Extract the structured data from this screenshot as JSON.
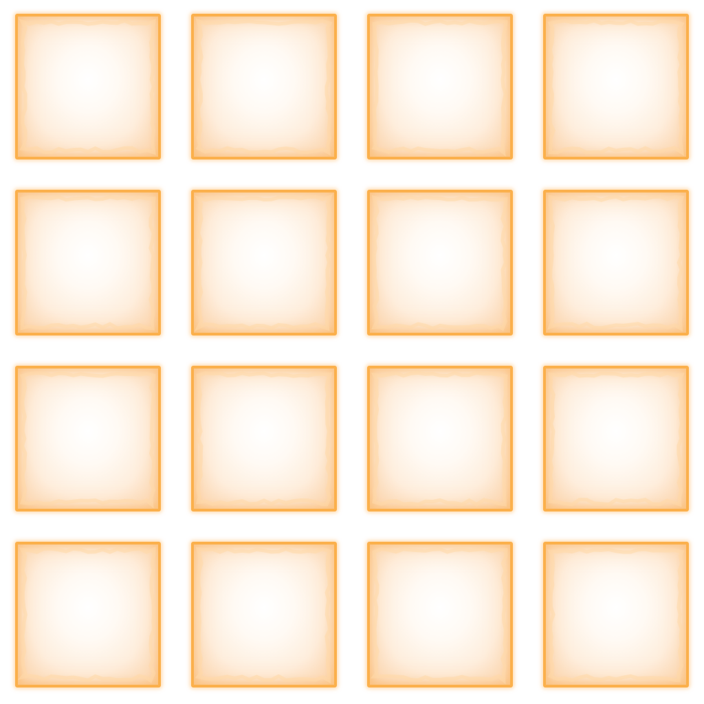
{
  "sheet": {
    "kind": "tile-sprite-sheet",
    "rows": 4,
    "columns": 4,
    "tile_style": "parchment-frame",
    "colors": {
      "background": "#ffffff",
      "frame": "#fbb04c",
      "glow": "#ffd9a8",
      "paper_center": "#ffffff",
      "paper_edge": "#f9c995"
    }
  },
  "tiles": [
    {
      "name": "tile-r1-c1"
    },
    {
      "name": "tile-r1-c2"
    },
    {
      "name": "tile-r1-c3"
    },
    {
      "name": "tile-r1-c4"
    },
    {
      "name": "tile-r2-c1"
    },
    {
      "name": "tile-r2-c2"
    },
    {
      "name": "tile-r2-c3"
    },
    {
      "name": "tile-r2-c4"
    },
    {
      "name": "tile-r3-c1"
    },
    {
      "name": "tile-r3-c2"
    },
    {
      "name": "tile-r3-c3"
    },
    {
      "name": "tile-r3-c4"
    },
    {
      "name": "tile-r4-c1"
    },
    {
      "name": "tile-r4-c2"
    },
    {
      "name": "tile-r4-c3"
    },
    {
      "name": "tile-r4-c4"
    }
  ]
}
